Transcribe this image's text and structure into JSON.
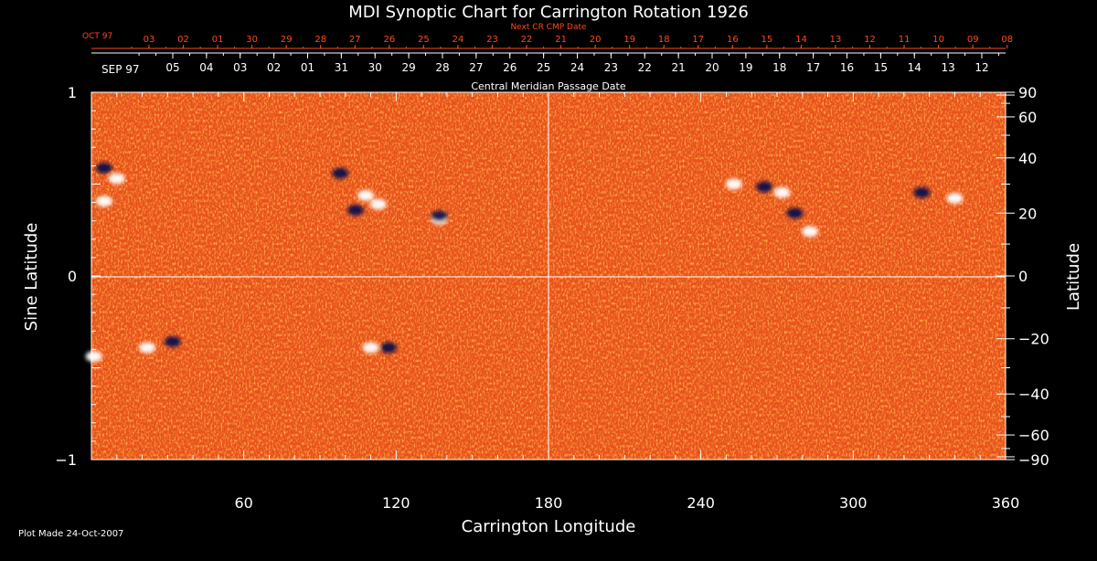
{
  "colors": {
    "background": "#000000",
    "text": "#ffffff",
    "next_cr": "#ff4a1c",
    "map_base": "#e8501c",
    "positive": "#ffffff",
    "negative": "#12124a"
  },
  "chart_data": {
    "type": "heatmap",
    "title": "MDI Synoptic Chart for Carrington Rotation 1926",
    "xlabel": "Carrington Longitude",
    "ylabel_left": "Sine Latitude",
    "ylabel_right": "Latitude",
    "xlim": [
      0,
      360
    ],
    "ylim": [
      -1,
      1
    ],
    "x_ticks": [
      60,
      120,
      180,
      240,
      300,
      360
    ],
    "x_minor_step": 10,
    "y_left_ticks": [
      {
        "v": 1,
        "label": "1"
      },
      {
        "v": 0,
        "label": "0"
      },
      {
        "v": -1,
        "label": "−1"
      }
    ],
    "y_right_ticks": [
      {
        "lat": 90,
        "label": "90"
      },
      {
        "lat": 60,
        "label": "60"
      },
      {
        "lat": 40,
        "label": "40"
      },
      {
        "lat": 20,
        "label": "20"
      },
      {
        "lat": 0,
        "label": "0"
      },
      {
        "lat": -20,
        "label": "−20"
      },
      {
        "lat": -40,
        "label": "−40"
      },
      {
        "lat": -60,
        "label": "−60"
      },
      {
        "lat": -90,
        "label": "−90"
      }
    ],
    "grid_lines": {
      "longitude": 180,
      "sine_latitude": 0
    },
    "top_axis": {
      "label": "Central Meridian Passage Date",
      "start_label": "SEP 97",
      "dates": [
        "05",
        "04",
        "03",
        "02",
        "01",
        "31",
        "30",
        "29",
        "28",
        "27",
        "26",
        "25",
        "24",
        "23",
        "22",
        "21",
        "20",
        "19",
        "18",
        "17",
        "16",
        "15",
        "14",
        "13",
        "12"
      ]
    },
    "next_cr_axis": {
      "label": "Next CR CMP Date",
      "start_label": "OCT 97",
      "dates": [
        "03",
        "02",
        "01",
        "30",
        "29",
        "28",
        "27",
        "26",
        "25",
        "24",
        "23",
        "22",
        "21",
        "20",
        "19",
        "18",
        "17",
        "16",
        "15",
        "14",
        "13",
        "12",
        "11",
        "10",
        "09",
        "08"
      ]
    },
    "active_regions": [
      {
        "lon": 5,
        "lat": 36,
        "polarity": "negative"
      },
      {
        "lon": 10,
        "lat": 32,
        "polarity": "positive"
      },
      {
        "lon": 5,
        "lat": 24,
        "polarity": "positive"
      },
      {
        "lon": 98,
        "lat": 34,
        "polarity": "negative"
      },
      {
        "lon": 108,
        "lat": 26,
        "polarity": "positive"
      },
      {
        "lon": 113,
        "lat": 23,
        "polarity": "positive"
      },
      {
        "lon": 104,
        "lat": 21,
        "polarity": "negative"
      },
      {
        "lon": 137,
        "lat": 18,
        "polarity": "positive"
      },
      {
        "lon": 137,
        "lat": 19,
        "polarity": "negative"
      },
      {
        "lon": 253,
        "lat": 30,
        "polarity": "positive"
      },
      {
        "lon": 265,
        "lat": 29,
        "polarity": "negative"
      },
      {
        "lon": 272,
        "lat": 27,
        "polarity": "positive"
      },
      {
        "lon": 277,
        "lat": 20,
        "polarity": "negative"
      },
      {
        "lon": 283,
        "lat": 14,
        "polarity": "positive"
      },
      {
        "lon": 327,
        "lat": 27,
        "polarity": "negative"
      },
      {
        "lon": 340,
        "lat": 25,
        "polarity": "positive"
      },
      {
        "lon": 32,
        "lat": -21,
        "polarity": "negative"
      },
      {
        "lon": 22,
        "lat": -23,
        "polarity": "positive"
      },
      {
        "lon": 117,
        "lat": -23,
        "polarity": "negative"
      },
      {
        "lon": 110,
        "lat": -23,
        "polarity": "positive"
      },
      {
        "lon": 1,
        "lat": -26,
        "polarity": "positive"
      }
    ]
  },
  "footer": {
    "plot_made": "Plot Made 24-Oct-2007"
  }
}
